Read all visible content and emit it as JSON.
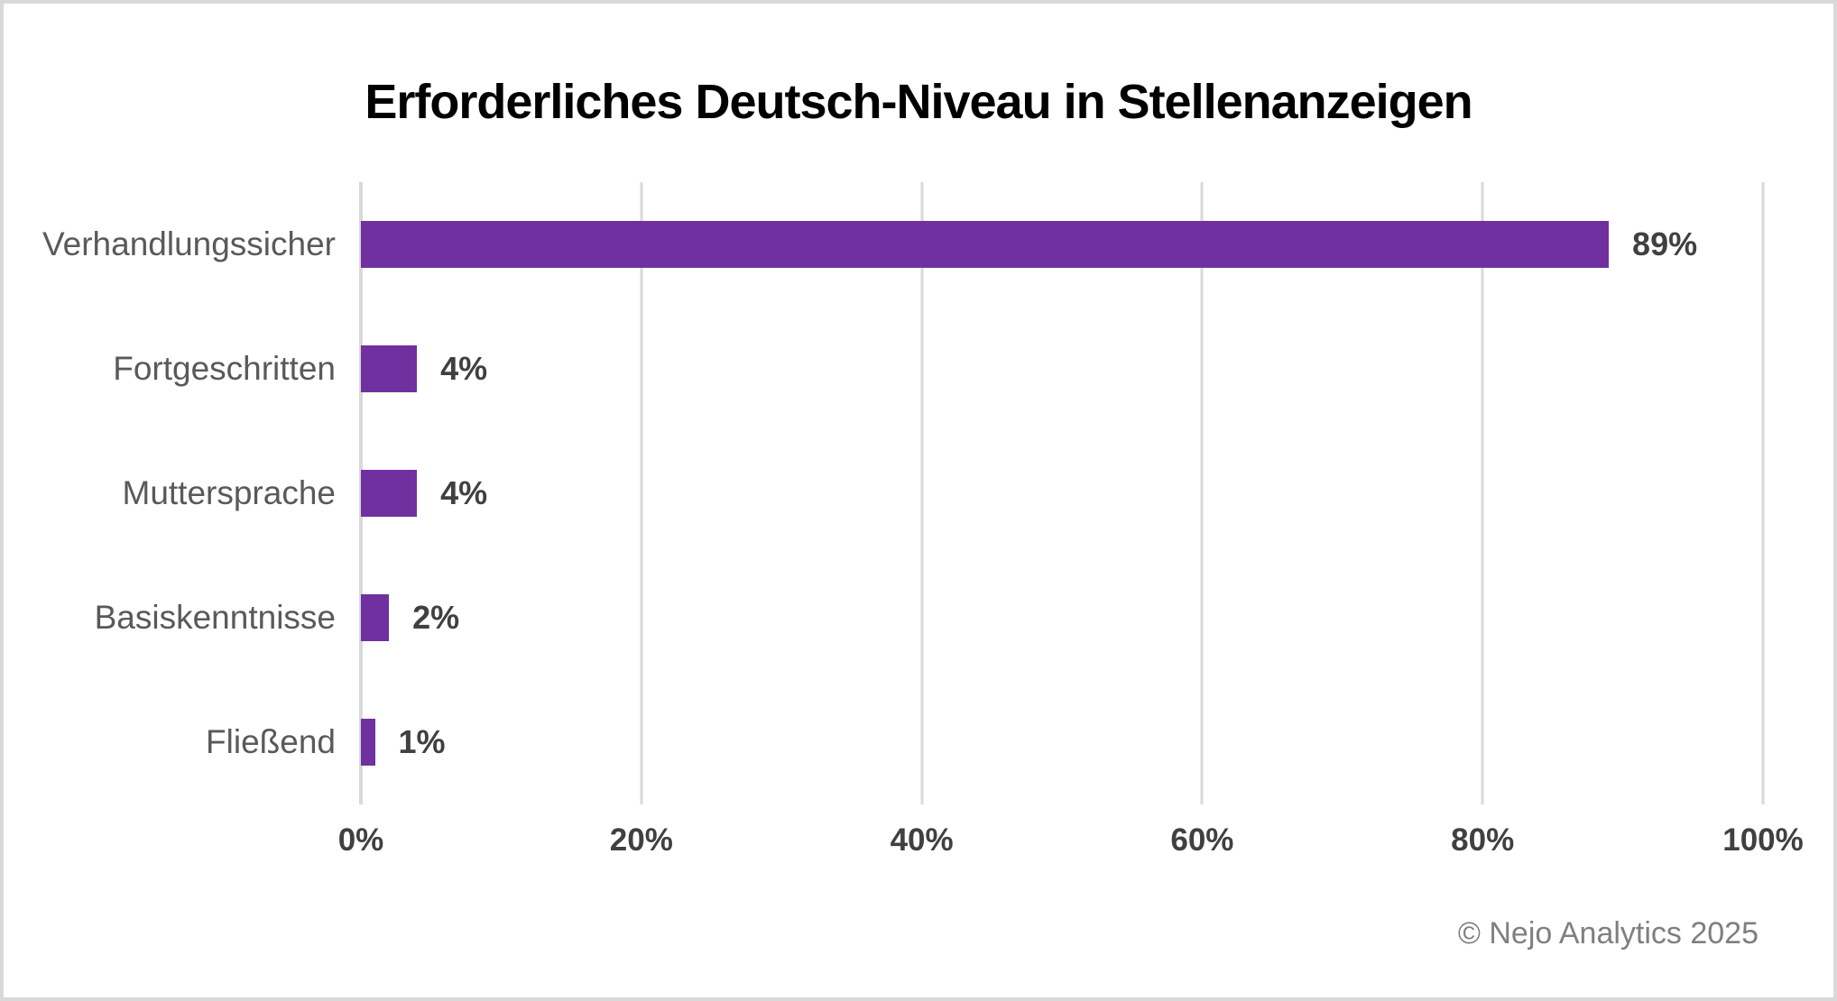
{
  "title": "Erforderliches Deutsch-Niveau in Stellenanzeigen",
  "footer": "© Nejo Analytics 2025",
  "colors": {
    "bar": "#7030A0",
    "gridline": "#D9D9D9",
    "frame_border": "#D9D9D9",
    "title": "#000000",
    "category_label": "#595959",
    "value_label": "#404040",
    "tick_label": "#404040",
    "footer": "#7F7F7F",
    "background": "#FFFFFF"
  },
  "chart_data": {
    "type": "bar",
    "orientation": "horizontal",
    "title": "Erforderliches Deutsch-Niveau in Stellenanzeigen",
    "categories": [
      "Verhandlungssicher",
      "Fortgeschritten",
      "Muttersprache",
      "Basiskenntnisse",
      "Fließend"
    ],
    "values": [
      89,
      4,
      4,
      2,
      1
    ],
    "value_labels": [
      "89%",
      "4%",
      "4%",
      "2%",
      "1%"
    ],
    "xlabel": "",
    "ylabel": "",
    "xlim": [
      0,
      100
    ],
    "x_ticks": [
      0,
      20,
      40,
      60,
      80,
      100
    ],
    "x_tick_labels": [
      "0%",
      "20%",
      "40%",
      "60%",
      "80%",
      "100%"
    ],
    "grid": "vertical-only",
    "legend": "none",
    "annotation": "© Nejo Analytics 2025"
  }
}
